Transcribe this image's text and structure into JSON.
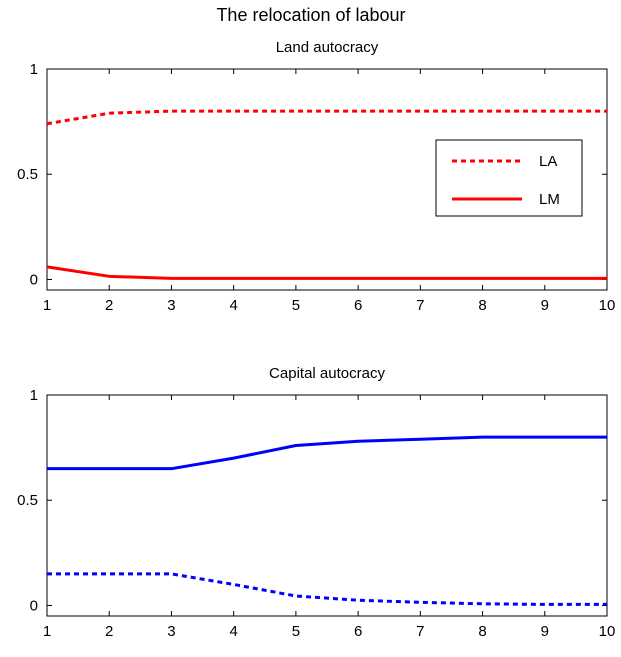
{
  "figure": {
    "title": "The relocation of labour"
  },
  "chart_data": [
    {
      "type": "line",
      "title": "Land autocracy",
      "xlabel": "",
      "ylabel": "",
      "x": [
        1,
        2,
        3,
        4,
        5,
        6,
        7,
        8,
        9,
        10
      ],
      "xlim": [
        1,
        10
      ],
      "ylim": [
        -0.05,
        1.0
      ],
      "xticks": [
        "1",
        "2",
        "3",
        "4",
        "5",
        "6",
        "7",
        "8",
        "9",
        "10"
      ],
      "yticks": [
        {
          "value": 0,
          "label": "0"
        },
        {
          "value": 0.5,
          "label": "0.5"
        },
        {
          "value": 1,
          "label": "1"
        }
      ],
      "grid": false,
      "legend": {
        "placement": "right",
        "visible": true
      },
      "series": [
        {
          "name": "LA",
          "color": "#ff0000",
          "style": "dotted",
          "values": [
            0.74,
            0.79,
            0.8,
            0.8,
            0.8,
            0.8,
            0.8,
            0.8,
            0.8,
            0.8
          ]
        },
        {
          "name": "LM",
          "color": "#ff0000",
          "style": "solid",
          "values": [
            0.06,
            0.015,
            0.005,
            0.005,
            0.005,
            0.005,
            0.005,
            0.005,
            0.005,
            0.005
          ]
        }
      ]
    },
    {
      "type": "line",
      "title": "Capital autocracy",
      "xlabel": "",
      "ylabel": "",
      "x": [
        1,
        2,
        3,
        4,
        5,
        6,
        7,
        8,
        9,
        10
      ],
      "xlim": [
        1,
        10
      ],
      "ylim": [
        -0.05,
        1.0
      ],
      "xticks": [
        "1",
        "2",
        "3",
        "4",
        "5",
        "6",
        "7",
        "8",
        "9",
        "10"
      ],
      "yticks": [
        {
          "value": 0,
          "label": "0"
        },
        {
          "value": 0.5,
          "label": "0.5"
        },
        {
          "value": 1,
          "label": "1"
        }
      ],
      "grid": false,
      "legend": {
        "visible": false
      },
      "series": [
        {
          "color": "#0000ff",
          "style": "solid",
          "values": [
            0.65,
            0.65,
            0.65,
            0.7,
            0.76,
            0.78,
            0.79,
            0.8,
            0.8,
            0.8
          ]
        },
        {
          "color": "#0000ff",
          "style": "dotted",
          "values": [
            0.15,
            0.15,
            0.15,
            0.1,
            0.045,
            0.025,
            0.015,
            0.008,
            0.005,
            0.005
          ]
        }
      ]
    }
  ]
}
